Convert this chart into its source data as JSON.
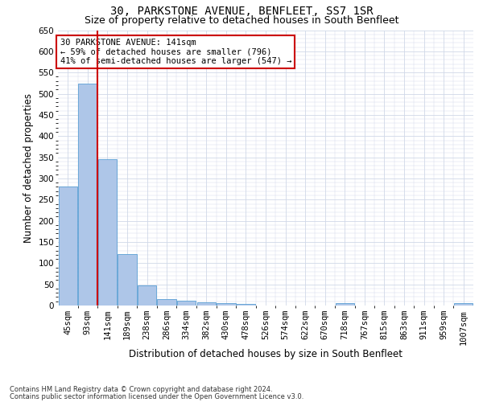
{
  "title": "30, PARKSTONE AVENUE, BENFLEET, SS7 1SR",
  "subtitle": "Size of property relative to detached houses in South Benfleet",
  "xlabel": "Distribution of detached houses by size in South Benfleet",
  "ylabel": "Number of detached properties",
  "footer1": "Contains HM Land Registry data © Crown copyright and database right 2024.",
  "footer2": "Contains public sector information licensed under the Open Government Licence v3.0.",
  "categories": [
    "45sqm",
    "93sqm",
    "141sqm",
    "189sqm",
    "238sqm",
    "286sqm",
    "334sqm",
    "382sqm",
    "430sqm",
    "478sqm",
    "526sqm",
    "574sqm",
    "622sqm",
    "670sqm",
    "718sqm",
    "767sqm",
    "815sqm",
    "863sqm",
    "911sqm",
    "959sqm",
    "1007sqm"
  ],
  "values": [
    280,
    523,
    345,
    122,
    48,
    16,
    11,
    8,
    5,
    3,
    0,
    0,
    0,
    0,
    5,
    0,
    0,
    0,
    0,
    0,
    5
  ],
  "bar_color": "#aec6e8",
  "bar_edge_color": "#5a9fd4",
  "red_line_index": 2,
  "ylim": [
    0,
    650
  ],
  "yticks": [
    0,
    50,
    100,
    150,
    200,
    250,
    300,
    350,
    400,
    450,
    500,
    550,
    600,
    650
  ],
  "annotation_text": "30 PARKSTONE AVENUE: 141sqm\n← 59% of detached houses are smaller (796)\n41% of semi-detached houses are larger (547) →",
  "annotation_box_color": "#ffffff",
  "annotation_box_edge": "#cc0000",
  "grid_color": "#d0d8e8",
  "background_color": "#ffffff",
  "title_fontsize": 10,
  "subtitle_fontsize": 9,
  "axis_fontsize": 8.5,
  "tick_fontsize": 7.5,
  "annotation_fontsize": 7.5
}
